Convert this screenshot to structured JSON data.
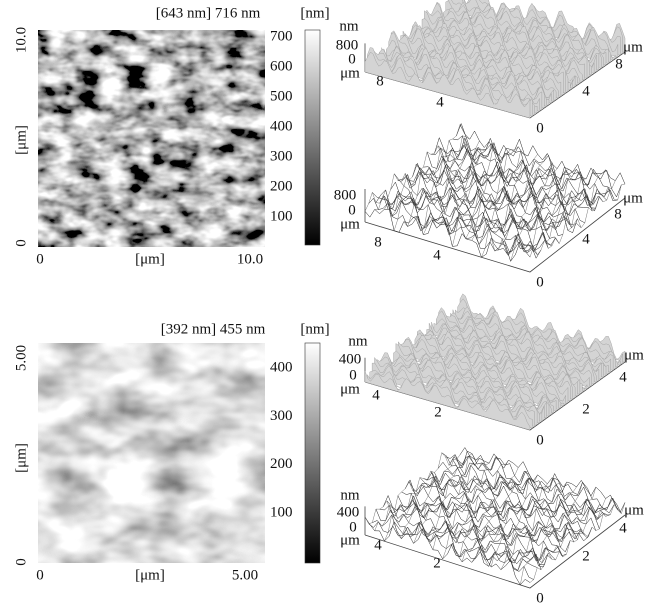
{
  "panels": [
    {
      "header": {
        "range": "[643 nm] 716 nm",
        "unit": "[nm]"
      },
      "image": {
        "y_axis": {
          "top": "10.0",
          "bottom": "0",
          "label": "[μm]"
        },
        "x_axis": {
          "left": "0",
          "label": "[μm]",
          "right": "10.0"
        }
      },
      "colorbar": {
        "ticks": [
          "700",
          "600",
          "500",
          "400",
          "300",
          "200",
          "100"
        ]
      },
      "surfaces": [
        {
          "z_unit": "nm",
          "z_top": "800",
          "z_bottom": "0",
          "left_unit": "μm",
          "left_ticks": [
            "8",
            "4"
          ],
          "right_unit": "μm",
          "right_ticks": [
            "8",
            "4",
            "0"
          ]
        },
        {
          "z_top": "800",
          "z_bottom": "0",
          "left_unit": "μm",
          "left_ticks": [
            "8",
            "4"
          ],
          "right_unit": "μm",
          "right_ticks": [
            "8",
            "4",
            "0"
          ]
        }
      ]
    },
    {
      "header": {
        "range": "[392 nm] 455 nm",
        "unit": "[nm]"
      },
      "image": {
        "y_axis": {
          "top": "5.00",
          "bottom": "0",
          "label": "[μm]"
        },
        "x_axis": {
          "left": "0",
          "label": "[μm]",
          "right": "5.00"
        }
      },
      "colorbar": {
        "ticks": [
          "400",
          "300",
          "200",
          "100"
        ]
      },
      "surfaces": [
        {
          "z_unit": "nm",
          "z_top": "400",
          "z_bottom": "0",
          "left_unit": "μm",
          "left_ticks": [
            "4",
            "2"
          ],
          "right_unit": "μm",
          "right_ticks": [
            "4",
            "2",
            "0"
          ]
        },
        {
          "z_unit": "nm",
          "z_top": "400",
          "z_bottom": "0",
          "left_unit": "μm",
          "left_ticks": [
            "4",
            "2"
          ],
          "right_unit": "μm",
          "right_ticks": [
            "4",
            "2",
            "0"
          ]
        }
      ]
    }
  ]
}
